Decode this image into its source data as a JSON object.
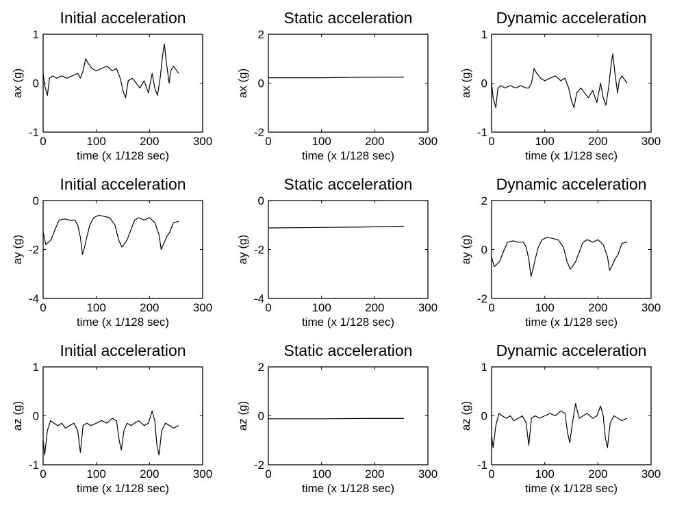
{
  "chart_data": [
    {
      "type": "line",
      "title": "Initial acceleration",
      "xlabel": "time (x 1/128 sec)",
      "ylabel": "ax (g)",
      "xlim": [
        0,
        300
      ],
      "ylim": [
        -1,
        1
      ],
      "xticks": [
        0,
        100,
        200,
        300
      ],
      "yticks": [
        -1,
        0,
        1
      ],
      "grid": false,
      "series": [
        {
          "color": "#000000",
          "x": [
            0,
            3,
            8,
            12,
            18,
            25,
            35,
            45,
            55,
            65,
            70,
            75,
            80,
            85,
            92,
            100,
            110,
            120,
            130,
            138,
            145,
            150,
            155,
            160,
            168,
            175,
            182,
            190,
            198,
            205,
            210,
            215,
            220,
            225,
            228,
            232,
            237,
            240,
            245,
            255
          ],
          "y": [
            0.2,
            -0.05,
            -0.25,
            0.1,
            0.15,
            0.1,
            0.15,
            0.1,
            0.15,
            0.2,
            0.1,
            0.25,
            0.5,
            0.4,
            0.3,
            0.25,
            0.3,
            0.35,
            0.25,
            0.3,
            0.1,
            -0.15,
            -0.3,
            0.05,
            0.1,
            0.0,
            -0.1,
            0.05,
            -0.2,
            0.2,
            -0.1,
            -0.25,
            0.1,
            0.6,
            0.8,
            0.4,
            0.0,
            0.25,
            0.35,
            0.2
          ]
        }
      ]
    },
    {
      "type": "line",
      "title": "Static acceleration",
      "xlabel": "time (x 1/128 sec)",
      "ylabel": "ax (g)",
      "xlim": [
        0,
        300
      ],
      "ylim": [
        -2,
        2
      ],
      "xticks": [
        0,
        100,
        200,
        300
      ],
      "yticks": [
        -2,
        0,
        2
      ],
      "grid": false,
      "series": [
        {
          "color": "#000000",
          "x": [
            0,
            100,
            180,
            255
          ],
          "y": [
            0.22,
            0.22,
            0.24,
            0.25
          ]
        }
      ]
    },
    {
      "type": "line",
      "title": "Dynamic acceleration",
      "xlabel": "time (x 1/128 sec)",
      "ylabel": "ax (g)",
      "xlim": [
        0,
        300
      ],
      "ylim": [
        -1,
        1
      ],
      "xticks": [
        0,
        100,
        200,
        300
      ],
      "yticks": [
        -1,
        0,
        1
      ],
      "grid": false,
      "series": [
        {
          "color": "#000000",
          "x": [
            0,
            3,
            8,
            12,
            18,
            25,
            35,
            45,
            55,
            65,
            70,
            75,
            80,
            85,
            92,
            100,
            110,
            120,
            130,
            138,
            145,
            150,
            155,
            160,
            168,
            175,
            182,
            190,
            198,
            205,
            210,
            215,
            220,
            225,
            228,
            232,
            237,
            240,
            245,
            255
          ],
          "y": [
            0.0,
            -0.3,
            -0.5,
            -0.1,
            -0.05,
            -0.1,
            -0.05,
            -0.1,
            -0.05,
            -0.1,
            -0.1,
            0.0,
            0.3,
            0.2,
            0.1,
            0.05,
            0.1,
            0.15,
            0.05,
            0.1,
            -0.1,
            -0.35,
            -0.5,
            -0.2,
            -0.1,
            -0.2,
            -0.3,
            -0.15,
            -0.4,
            0.0,
            -0.3,
            -0.45,
            -0.1,
            0.4,
            0.6,
            0.2,
            -0.2,
            0.05,
            0.15,
            0.0
          ]
        }
      ]
    },
    {
      "type": "line",
      "title": "Initial acceleration",
      "xlabel": "time (x 1/128 sec)",
      "ylabel": "ay (g)",
      "xlim": [
        0,
        300
      ],
      "ylim": [
        -4,
        0
      ],
      "xticks": [
        0,
        100,
        200,
        300
      ],
      "yticks": [
        -4,
        -2,
        0
      ],
      "grid": false,
      "series": [
        {
          "color": "#000000",
          "x": [
            0,
            5,
            10,
            15,
            22,
            30,
            40,
            50,
            60,
            65,
            70,
            74,
            78,
            82,
            88,
            95,
            105,
            115,
            125,
            135,
            142,
            148,
            152,
            158,
            165,
            172,
            180,
            190,
            200,
            210,
            218,
            222,
            226,
            232,
            238,
            245,
            255
          ],
          "y": [
            -1.3,
            -1.8,
            -1.7,
            -1.6,
            -1.2,
            -0.8,
            -0.75,
            -0.8,
            -0.8,
            -1.0,
            -1.5,
            -2.2,
            -1.9,
            -1.5,
            -1.0,
            -0.7,
            -0.6,
            -0.65,
            -0.7,
            -1.0,
            -1.6,
            -1.9,
            -1.8,
            -1.6,
            -1.2,
            -0.8,
            -0.7,
            -0.8,
            -0.7,
            -0.9,
            -1.4,
            -2.0,
            -1.8,
            -1.5,
            -1.3,
            -0.9,
            -0.85
          ]
        }
      ]
    },
    {
      "type": "line",
      "title": "Static acceleration",
      "xlabel": "time (x 1/128 sec)",
      "ylabel": "ay (g)",
      "xlim": [
        0,
        300
      ],
      "ylim": [
        -4,
        0
      ],
      "xticks": [
        0,
        100,
        200,
        300
      ],
      "yticks": [
        -4,
        -2,
        0
      ],
      "grid": false,
      "series": [
        {
          "color": "#000000",
          "x": [
            0,
            100,
            180,
            255
          ],
          "y": [
            -1.12,
            -1.1,
            -1.08,
            -1.05
          ]
        }
      ]
    },
    {
      "type": "line",
      "title": "Dynamic acceleration",
      "xlabel": "time (x 1/128 sec)",
      "ylabel": "ay (g)",
      "xlim": [
        0,
        300
      ],
      "ylim": [
        -2,
        2
      ],
      "xticks": [
        0,
        100,
        200,
        300
      ],
      "yticks": [
        -2,
        0,
        2
      ],
      "grid": false,
      "series": [
        {
          "color": "#000000",
          "x": [
            0,
            5,
            10,
            15,
            22,
            30,
            40,
            50,
            60,
            65,
            70,
            74,
            78,
            82,
            88,
            95,
            105,
            115,
            125,
            135,
            142,
            148,
            152,
            158,
            165,
            172,
            180,
            190,
            200,
            210,
            218,
            222,
            226,
            232,
            238,
            245,
            255
          ],
          "y": [
            -0.3,
            -0.7,
            -0.6,
            -0.5,
            -0.1,
            0.3,
            0.35,
            0.3,
            0.3,
            0.1,
            -0.4,
            -1.1,
            -0.8,
            -0.4,
            0.1,
            0.4,
            0.5,
            0.45,
            0.4,
            0.1,
            -0.5,
            -0.8,
            -0.7,
            -0.5,
            -0.1,
            0.3,
            0.4,
            0.3,
            0.4,
            0.2,
            -0.3,
            -0.85,
            -0.7,
            -0.4,
            -0.2,
            0.25,
            0.3
          ]
        }
      ]
    },
    {
      "type": "line",
      "title": "Initial acceleration",
      "xlabel": "time (x 1/128 sec)",
      "ylabel": "az (g)",
      "xlim": [
        0,
        300
      ],
      "ylim": [
        -1,
        1
      ],
      "xticks": [
        0,
        100,
        200,
        300
      ],
      "yticks": [
        -1,
        0,
        1
      ],
      "grid": false,
      "series": [
        {
          "color": "#000000",
          "x": [
            0,
            3,
            8,
            14,
            20,
            28,
            35,
            42,
            50,
            58,
            65,
            70,
            75,
            82,
            90,
            100,
            110,
            120,
            130,
            138,
            143,
            147,
            152,
            158,
            165,
            172,
            180,
            190,
            198,
            205,
            210,
            214,
            218,
            223,
            230,
            238,
            245,
            255
          ],
          "y": [
            -0.5,
            -0.8,
            -0.3,
            -0.1,
            -0.15,
            -0.2,
            -0.15,
            -0.25,
            -0.2,
            -0.15,
            -0.3,
            -0.75,
            -0.2,
            -0.15,
            -0.2,
            -0.15,
            -0.1,
            -0.15,
            -0.05,
            -0.1,
            -0.5,
            -0.7,
            -0.3,
            -0.15,
            -0.2,
            -0.15,
            -0.1,
            -0.2,
            -0.15,
            0.1,
            -0.1,
            -0.6,
            -0.8,
            -0.3,
            -0.15,
            -0.2,
            -0.25,
            -0.2
          ]
        }
      ]
    },
    {
      "type": "line",
      "title": "Static acceleration",
      "xlabel": "time (x 1/128 sec)",
      "ylabel": "az (g)",
      "xlim": [
        0,
        300
      ],
      "ylim": [
        -2,
        2
      ],
      "xticks": [
        0,
        100,
        200,
        300
      ],
      "yticks": [
        -2,
        0,
        2
      ],
      "grid": false,
      "series": [
        {
          "color": "#000000",
          "x": [
            0,
            100,
            180,
            255
          ],
          "y": [
            -0.12,
            -0.12,
            -0.11,
            -0.11
          ]
        }
      ]
    },
    {
      "type": "line",
      "title": "Dynamic acceleration",
      "xlabel": "time (x 1/128 sec)",
      "ylabel": "az (g)",
      "xlim": [
        0,
        300
      ],
      "ylim": [
        -1,
        1
      ],
      "xticks": [
        0,
        100,
        200,
        300
      ],
      "yticks": [
        -1,
        0,
        1
      ],
      "grid": false,
      "series": [
        {
          "color": "#000000",
          "x": [
            0,
            3,
            8,
            14,
            20,
            28,
            35,
            42,
            50,
            58,
            65,
            70,
            75,
            82,
            90,
            100,
            110,
            120,
            130,
            138,
            143,
            147,
            152,
            158,
            165,
            172,
            180,
            190,
            198,
            205,
            210,
            214,
            218,
            223,
            230,
            238,
            245,
            255
          ],
          "y": [
            -0.4,
            -0.65,
            -0.2,
            0.05,
            0.0,
            -0.05,
            0.0,
            -0.1,
            -0.05,
            0.0,
            -0.15,
            -0.6,
            -0.05,
            0.0,
            -0.05,
            0.0,
            0.05,
            0.0,
            0.1,
            0.05,
            -0.35,
            -0.55,
            -0.15,
            0.25,
            -0.05,
            0.0,
            0.05,
            -0.05,
            0.0,
            0.2,
            0.0,
            -0.45,
            -0.65,
            -0.15,
            0.0,
            -0.05,
            -0.1,
            -0.05
          ]
        }
      ]
    }
  ]
}
